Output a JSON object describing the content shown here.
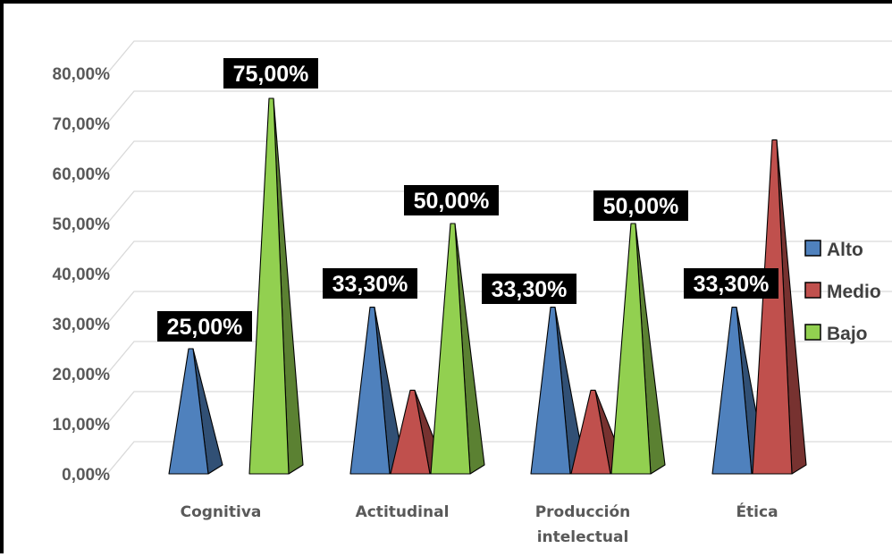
{
  "chart_data": {
    "type": "bar",
    "title": "",
    "xlabel": "",
    "ylabel": "",
    "ylim": [
      0,
      80
    ],
    "y_ticks": [
      "0,00%",
      "10,00%",
      "20,00%",
      "30,00%",
      "40,00%",
      "50,00%",
      "60,00%",
      "70,00%",
      "80,00%"
    ],
    "categories": [
      "Cognitiva",
      "Actitudinal",
      "Producción intelectual",
      "Ética"
    ],
    "category_lines": [
      [
        "Cognitiva"
      ],
      [
        "Actitudinal"
      ],
      [
        "Producción",
        "intelectual"
      ],
      [
        "Ética"
      ]
    ],
    "series": [
      {
        "name": "Alto",
        "color": "#4F81BD",
        "values": [
          25.0,
          33.3,
          33.3,
          33.3
        ]
      },
      {
        "name": "Medio",
        "color": "#C0504D",
        "values": [
          0,
          16.7,
          16.7,
          66.7
        ]
      },
      {
        "name": "Bajo",
        "color": "#92D050",
        "values": [
          75.0,
          50.0,
          50.0,
          0
        ]
      }
    ],
    "data_labels": [
      {
        "series": 0,
        "category": 0,
        "text": "25,00%"
      },
      {
        "series": 2,
        "category": 0,
        "text": "75,00%"
      },
      {
        "series": 0,
        "category": 1,
        "text": "33,30%"
      },
      {
        "series": 2,
        "category": 1,
        "text": "50,00%"
      },
      {
        "series": 0,
        "category": 2,
        "text": "33,30%"
      },
      {
        "series": 2,
        "category": 2,
        "text": "50,00%"
      },
      {
        "series": 0,
        "category": 3,
        "text": "33,30%"
      }
    ],
    "grid": true,
    "legend": "right",
    "style": "3d-pyramid"
  }
}
